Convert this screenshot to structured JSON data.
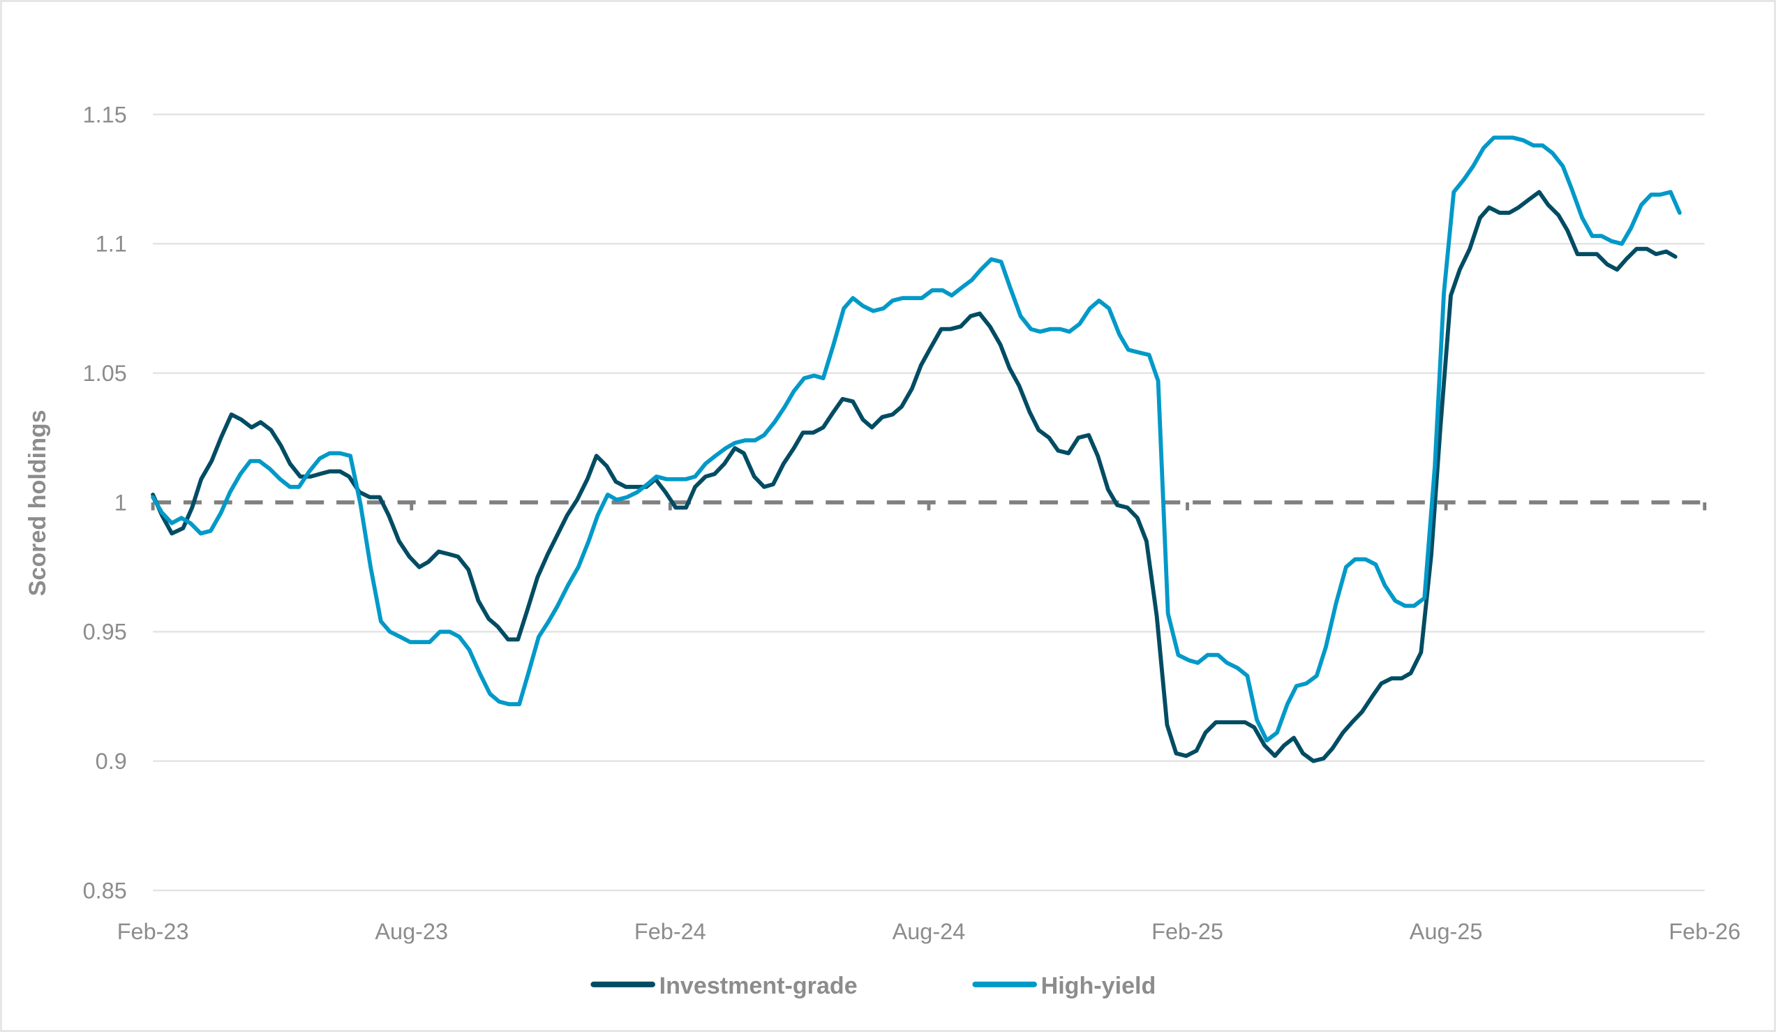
{
  "chart_data": {
    "type": "line",
    "title": "",
    "xlabel": "",
    "ylabel": "Scored holdings",
    "ylim": [
      0.85,
      1.15
    ],
    "yticks": [
      "1.15",
      "1.1",
      "1.05",
      "1",
      "0.95",
      "0.9",
      "0.85"
    ],
    "ytick_values": [
      1.15,
      1.1,
      1.05,
      1.0,
      0.95,
      0.9,
      0.85
    ],
    "xticks": [
      "Feb-23",
      "Aug-23",
      "Feb-24",
      "Aug-24",
      "Feb-25",
      "Aug-25",
      "Feb-26"
    ],
    "xlim_months": [
      0,
      36
    ],
    "grid": true,
    "reference_line": {
      "value": 1.0,
      "style": "dashed",
      "color": "#808080"
    },
    "legend_position": "bottom",
    "series": [
      {
        "name": "Investment-grade",
        "color": "#004c63",
        "x_month": [
          0.0,
          0.21,
          0.44,
          0.7,
          0.91,
          1.12,
          1.36,
          1.58,
          1.82,
          2.05,
          2.29,
          2.5,
          2.74,
          2.97,
          3.18,
          3.42,
          3.66,
          3.87,
          4.1,
          4.34,
          4.55,
          4.79,
          5.03,
          5.26,
          5.47,
          5.71,
          5.95,
          6.18,
          6.39,
          6.63,
          6.87,
          7.08,
          7.32,
          7.55,
          7.79,
          8.0,
          8.24,
          8.47,
          8.68,
          8.92,
          9.16,
          9.37,
          9.61,
          9.84,
          10.08,
          10.29,
          10.53,
          10.74,
          10.97,
          11.21,
          11.45,
          11.66,
          11.89,
          12.13,
          12.37,
          12.58,
          12.82,
          13.03,
          13.26,
          13.5,
          13.71,
          13.95,
          14.18,
          14.39,
          14.63,
          14.87,
          15.08,
          15.32,
          15.55,
          15.79,
          16.0,
          16.24,
          16.47,
          16.68,
          16.92,
          17.16,
          17.37,
          17.61,
          17.82,
          18.05,
          18.29,
          18.5,
          18.74,
          18.97,
          19.18,
          19.42,
          19.66,
          19.87,
          20.1,
          20.34,
          20.55,
          20.79,
          21.0,
          21.24,
          21.47,
          21.71,
          21.92,
          22.16,
          22.37,
          22.61,
          22.84,
          23.05,
          23.29,
          23.53,
          23.74,
          23.97,
          24.21,
          24.42,
          24.66,
          24.87,
          25.11,
          25.34,
          25.55,
          25.79,
          26.03,
          26.24,
          26.47,
          26.68,
          26.92,
          27.16,
          27.37,
          27.61,
          27.82,
          28.05,
          28.29,
          28.5,
          28.74,
          28.97,
          29.18,
          29.42,
          29.66,
          29.87,
          30.11,
          30.32,
          30.55,
          30.79,
          31.0,
          31.24,
          31.47,
          31.68,
          31.92,
          32.16,
          32.37,
          32.61,
          32.82,
          33.05,
          33.29,
          33.5,
          33.74,
          33.97,
          34.18,
          34.42,
          34.66,
          34.87,
          35.11,
          35.32,
          35.53,
          35.74
        ],
        "values": [
          1.003,
          0.995,
          0.988,
          0.99,
          0.998,
          1.009,
          1.016,
          1.025,
          1.034,
          1.032,
          1.029,
          1.031,
          1.028,
          1.022,
          1.015,
          1.01,
          1.01,
          1.011,
          1.012,
          1.012,
          1.01,
          1.004,
          1.002,
          1.002,
          0.995,
          0.985,
          0.979,
          0.975,
          0.977,
          0.981,
          0.98,
          0.979,
          0.974,
          0.962,
          0.955,
          0.952,
          0.947,
          0.947,
          0.958,
          0.971,
          0.98,
          0.987,
          0.995,
          1.001,
          1.009,
          1.018,
          1.014,
          1.008,
          1.006,
          1.006,
          1.006,
          1.009,
          1.004,
          0.998,
          0.998,
          1.006,
          1.01,
          1.011,
          1.015,
          1.021,
          1.019,
          1.01,
          1.006,
          1.007,
          1.015,
          1.021,
          1.027,
          1.027,
          1.029,
          1.035,
          1.04,
          1.039,
          1.032,
          1.029,
          1.033,
          1.034,
          1.037,
          1.044,
          1.053,
          1.06,
          1.067,
          1.067,
          1.068,
          1.072,
          1.073,
          1.068,
          1.061,
          1.052,
          1.045,
          1.035,
          1.028,
          1.025,
          1.02,
          1.019,
          1.025,
          1.026,
          1.018,
          1.005,
          0.999,
          0.998,
          0.994,
          0.985,
          0.956,
          0.914,
          0.903,
          0.902,
          0.904,
          0.911,
          0.915,
          0.915,
          0.915,
          0.915,
          0.913,
          0.906,
          0.902,
          0.906,
          0.909,
          0.903,
          0.9,
          0.901,
          0.905,
          0.911,
          0.915,
          0.919,
          0.925,
          0.93,
          0.932,
          0.932,
          0.934,
          0.942,
          0.98,
          1.029,
          1.08,
          1.09,
          1.098,
          1.11,
          1.114,
          1.112,
          1.112,
          1.114,
          1.117,
          1.12,
          1.115,
          1.111,
          1.105,
          1.096,
          1.096,
          1.096,
          1.092,
          1.09,
          1.094,
          1.098,
          1.098,
          1.096,
          1.097,
          1.095
        ]
      },
      {
        "name": "High-yield",
        "color": "#0099c8",
        "x_month": [
          0.0,
          0.21,
          0.44,
          0.66,
          0.87,
          1.11,
          1.34,
          1.58,
          1.79,
          2.03,
          2.26,
          2.47,
          2.71,
          2.95,
          3.18,
          3.39,
          3.63,
          3.87,
          4.1,
          4.34,
          4.58,
          4.82,
          5.05,
          5.29,
          5.5,
          5.74,
          5.97,
          6.21,
          6.42,
          6.66,
          6.89,
          7.11,
          7.34,
          7.58,
          7.82,
          8.03,
          8.26,
          8.5,
          8.71,
          8.95,
          9.18,
          9.39,
          9.63,
          9.87,
          10.11,
          10.32,
          10.55,
          10.76,
          11.0,
          11.24,
          11.47,
          11.68,
          11.92,
          12.13,
          12.37,
          12.58,
          12.82,
          13.05,
          13.29,
          13.5,
          13.74,
          13.97,
          14.18,
          14.42,
          14.66,
          14.87,
          15.11,
          15.34,
          15.55,
          15.79,
          16.03,
          16.24,
          16.47,
          16.71,
          16.95,
          17.16,
          17.39,
          17.63,
          17.84,
          18.08,
          18.32,
          18.53,
          18.76,
          19.0,
          19.21,
          19.45,
          19.68,
          19.89,
          20.13,
          20.37,
          20.58,
          20.82,
          21.05,
          21.26,
          21.5,
          21.74,
          21.95,
          22.18,
          22.42,
          22.63,
          22.87,
          23.11,
          23.32,
          23.55,
          23.79,
          24.03,
          24.24,
          24.47,
          24.71,
          24.92,
          25.16,
          25.39,
          25.61,
          25.84,
          26.08,
          26.32,
          26.53,
          26.76,
          27.0,
          27.21,
          27.45,
          27.68,
          27.89,
          28.13,
          28.37,
          28.58,
          28.82,
          29.05,
          29.26,
          29.5,
          29.74,
          29.95,
          30.18,
          30.42,
          30.63,
          30.87,
          31.11,
          31.32,
          31.55,
          31.79,
          32.03,
          32.24,
          32.47,
          32.71,
          32.92,
          33.16,
          33.39,
          33.61,
          33.84,
          34.08,
          34.29,
          34.53,
          34.76,
          34.97,
          35.21,
          35.42,
          35.74
        ],
        "values": [
          1.002,
          0.996,
          0.992,
          0.994,
          0.992,
          0.988,
          0.989,
          0.996,
          1.004,
          1.011,
          1.016,
          1.016,
          1.013,
          1.009,
          1.006,
          1.006,
          1.012,
          1.017,
          1.019,
          1.019,
          1.018,
          0.999,
          0.975,
          0.954,
          0.95,
          0.948,
          0.946,
          0.946,
          0.946,
          0.95,
          0.95,
          0.948,
          0.943,
          0.934,
          0.926,
          0.923,
          0.922,
          0.922,
          0.934,
          0.948,
          0.954,
          0.96,
          0.968,
          0.975,
          0.985,
          0.995,
          1.003,
          1.001,
          1.002,
          1.004,
          1.007,
          1.01,
          1.009,
          1.009,
          1.009,
          1.01,
          1.015,
          1.018,
          1.021,
          1.023,
          1.024,
          1.024,
          1.026,
          1.031,
          1.037,
          1.043,
          1.048,
          1.049,
          1.048,
          1.061,
          1.075,
          1.079,
          1.076,
          1.074,
          1.075,
          1.078,
          1.079,
          1.079,
          1.079,
          1.082,
          1.082,
          1.08,
          1.083,
          1.086,
          1.09,
          1.094,
          1.093,
          1.083,
          1.072,
          1.067,
          1.066,
          1.067,
          1.067,
          1.066,
          1.069,
          1.075,
          1.078,
          1.075,
          1.065,
          1.059,
          1.058,
          1.057,
          1.047,
          0.957,
          0.941,
          0.939,
          0.938,
          0.941,
          0.941,
          0.938,
          0.936,
          0.933,
          0.916,
          0.908,
          0.911,
          0.922,
          0.929,
          0.93,
          0.933,
          0.944,
          0.961,
          0.975,
          0.978,
          0.978,
          0.976,
          0.968,
          0.962,
          0.96,
          0.96,
          0.963,
          1.014,
          1.081,
          1.12,
          1.125,
          1.13,
          1.137,
          1.141,
          1.141,
          1.141,
          1.14,
          1.138,
          1.138,
          1.135,
          1.13,
          1.121,
          1.11,
          1.103,
          1.103,
          1.101,
          1.1,
          1.106,
          1.115,
          1.119,
          1.119,
          1.12,
          1.112
        ]
      }
    ]
  }
}
